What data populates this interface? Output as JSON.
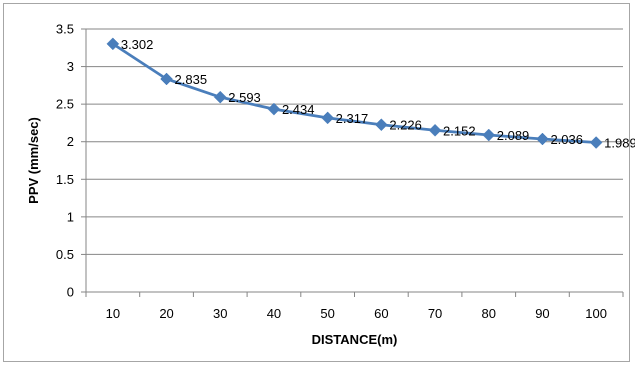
{
  "chart_data": {
    "type": "line",
    "title": "",
    "xlabel": "DISTANCE(m)",
    "ylabel": "PPV (mm/sec)",
    "categories": [
      "10",
      "20",
      "30",
      "40",
      "50",
      "60",
      "70",
      "80",
      "90",
      "100"
    ],
    "series": [
      {
        "values": [
          3.302,
          2.835,
          2.593,
          2.434,
          2.317,
          2.226,
          2.152,
          2.089,
          2.036,
          1.989
        ],
        "data_labels": [
          "3.302",
          "2.835",
          "2.593",
          "2.434",
          "2.317",
          "2.226",
          "2.152",
          "2.089",
          "2.036",
          "1.989"
        ],
        "color": "#4a7ebb",
        "marker": "diamond"
      }
    ],
    "yticks": [
      "0",
      "0.5",
      "1",
      "1.5",
      "2",
      "2.5",
      "3",
      "3.5"
    ],
    "ylim": [
      0,
      3.5
    ],
    "grid": true,
    "grid_color": "#868686",
    "legend": "none"
  }
}
